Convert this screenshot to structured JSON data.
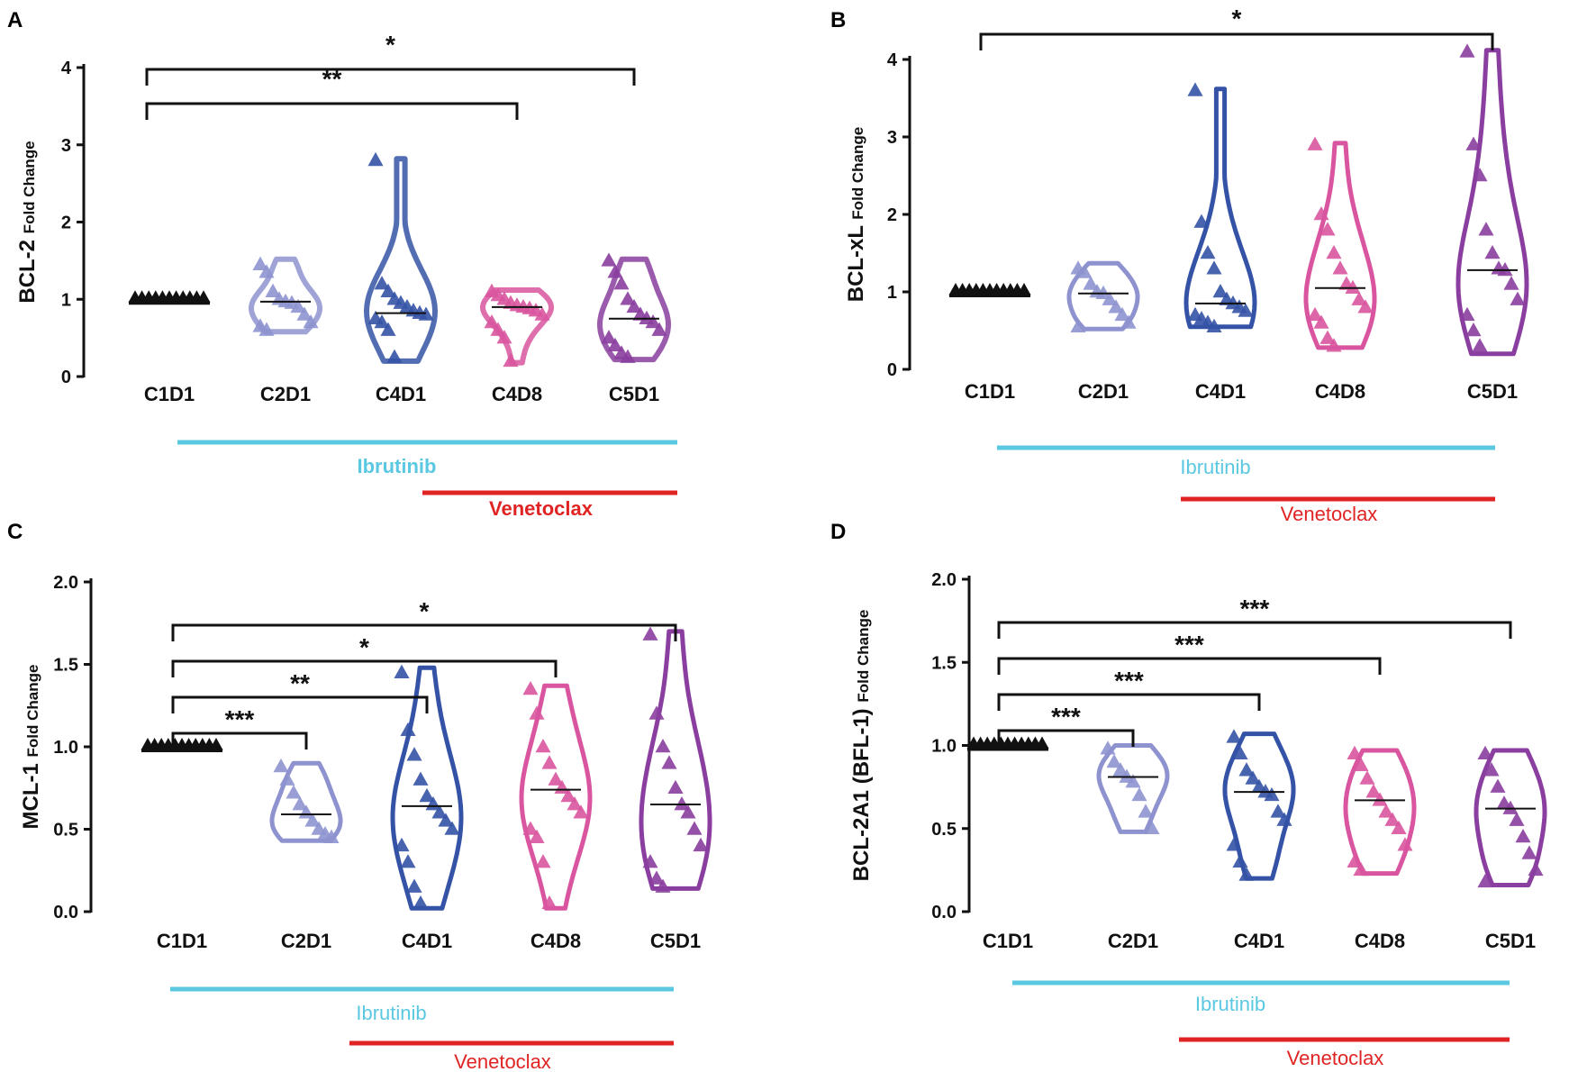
{
  "colors": {
    "C1D1": "#111111",
    "C2D1": "#8e93cf",
    "C4D1": "#3553a6",
    "C4D8": "#d9559f",
    "C5D1": "#8a3e9f",
    "ibrutinib": "#5bc8e2",
    "venetoclax": "#e02424"
  },
  "chart_data": [
    {
      "id": "A",
      "type": "violin",
      "letter": "A",
      "ylabel_main": "BCL-2",
      "ylabel_sub": "Fold Change",
      "ylim": [
        0,
        4
      ],
      "yticks": [
        "0",
        "1",
        "2",
        "3",
        "4"
      ],
      "categories": [
        "C1D1",
        "C2D1",
        "C4D1",
        "C4D8",
        "C5D1"
      ],
      "medians": [
        1.0,
        0.97,
        0.82,
        0.9,
        0.75
      ],
      "series": [
        {
          "name": "C1D1",
          "values": [
            1,
            1,
            1,
            1,
            1,
            1,
            1,
            1,
            1,
            1,
            1,
            1
          ],
          "range": [
            1,
            1
          ]
        },
        {
          "name": "C2D1",
          "values": [
            1.45,
            1.35,
            1.1,
            1.0,
            0.97,
            0.95,
            0.9,
            0.8,
            0.7,
            0.65,
            0.6
          ],
          "range": [
            0.58,
            1.52
          ]
        },
        {
          "name": "C4D1",
          "values": [
            2.8,
            1.2,
            1.1,
            1.0,
            0.95,
            0.9,
            0.85,
            0.82,
            0.8,
            0.75,
            0.7,
            0.6,
            0.25
          ],
          "range": [
            0.2,
            2.82
          ]
        },
        {
          "name": "C4D8",
          "values": [
            1.1,
            1.05,
            1.0,
            0.95,
            0.92,
            0.9,
            0.88,
            0.85,
            0.8,
            0.7,
            0.6,
            0.5,
            0.2
          ],
          "range": [
            0.18,
            1.12
          ]
        },
        {
          "name": "C5D1",
          "values": [
            1.5,
            1.35,
            1.2,
            1.0,
            0.9,
            0.8,
            0.75,
            0.7,
            0.6,
            0.5,
            0.4,
            0.3,
            0.25
          ],
          "range": [
            0.22,
            1.52
          ]
        }
      ],
      "style": "bold",
      "comparisons": [
        {
          "from": "C1D1",
          "to": "C4D8",
          "label": "**"
        },
        {
          "from": "C1D1",
          "to": "C5D1",
          "label": "*"
        }
      ],
      "ibrutinib_label": "Ibrutinib",
      "venetoclax_label": "Venetoclax"
    },
    {
      "id": "B",
      "type": "violin",
      "letter": "B",
      "ylabel_main": "BCL-xL",
      "ylabel_sub": "Fold Change",
      "ylim": [
        0,
        4
      ],
      "yticks": [
        "0",
        "1",
        "2",
        "3",
        "4"
      ],
      "categories": [
        "C1D1",
        "C2D1",
        "C4D1",
        "C4D8",
        "C5D1"
      ],
      "medians": [
        1.0,
        0.98,
        0.85,
        1.05,
        1.28
      ],
      "series": [
        {
          "name": "C1D1",
          "values": [
            1,
            1,
            1,
            1,
            1,
            1,
            1,
            1,
            1,
            1,
            1,
            1
          ],
          "range": [
            1,
            1
          ]
        },
        {
          "name": "C2D1",
          "values": [
            1.3,
            1.25,
            1.1,
            1.0,
            0.98,
            0.9,
            0.8,
            0.7,
            0.6,
            0.55
          ],
          "range": [
            0.52,
            1.37
          ]
        },
        {
          "name": "C4D1",
          "values": [
            3.6,
            1.9,
            1.5,
            1.3,
            1.0,
            0.9,
            0.85,
            0.8,
            0.75,
            0.7,
            0.65,
            0.6,
            0.55
          ],
          "range": [
            0.55,
            3.62
          ]
        },
        {
          "name": "C4D8",
          "values": [
            2.9,
            2.0,
            1.8,
            1.5,
            1.3,
            1.1,
            1.05,
            0.9,
            0.8,
            0.7,
            0.6,
            0.4,
            0.3
          ],
          "range": [
            0.28,
            2.92
          ]
        },
        {
          "name": "C5D1",
          "values": [
            4.1,
            2.9,
            2.5,
            1.8,
            1.5,
            1.3,
            1.28,
            1.1,
            0.9,
            0.7,
            0.5,
            0.3
          ],
          "range": [
            0.2,
            4.12
          ]
        }
      ],
      "style": "light",
      "comparisons": [
        {
          "from": "C1D1",
          "to": "C5D1",
          "label": "*"
        }
      ],
      "ibrutinib_label": "Ibrutinib",
      "venetoclax_label": "Venetoclax"
    },
    {
      "id": "C",
      "type": "violin",
      "letter": "C",
      "ylabel_main": "MCL-1",
      "ylabel_sub": "Fold Change",
      "ylim": [
        0,
        2
      ],
      "yticks": [
        "0.0",
        "0.5",
        "1.0",
        "1.5",
        "2.0"
      ],
      "categories": [
        "C1D1",
        "C2D1",
        "C4D1",
        "C4D8",
        "C5D1"
      ],
      "medians": [
        1.0,
        0.59,
        0.64,
        0.74,
        0.65
      ],
      "series": [
        {
          "name": "C1D1",
          "values": [
            1,
            1,
            1,
            1,
            1,
            1,
            1,
            1,
            1,
            1,
            1,
            1
          ],
          "range": [
            1,
            1
          ]
        },
        {
          "name": "C2D1",
          "values": [
            0.88,
            0.8,
            0.72,
            0.65,
            0.6,
            0.55,
            0.5,
            0.47,
            0.45
          ],
          "range": [
            0.43,
            0.9
          ]
        },
        {
          "name": "C4D1",
          "values": [
            1.45,
            1.1,
            0.95,
            0.8,
            0.7,
            0.65,
            0.6,
            0.55,
            0.5,
            0.4,
            0.3,
            0.15,
            0.05
          ],
          "range": [
            0.02,
            1.48
          ]
        },
        {
          "name": "C4D8",
          "values": [
            1.35,
            1.2,
            1.0,
            0.9,
            0.8,
            0.75,
            0.7,
            0.65,
            0.6,
            0.5,
            0.45,
            0.3,
            0.05
          ],
          "range": [
            0.02,
            1.37
          ]
        },
        {
          "name": "C5D1",
          "values": [
            1.68,
            1.2,
            1.0,
            0.9,
            0.75,
            0.65,
            0.6,
            0.5,
            0.4,
            0.3,
            0.2,
            0.15
          ],
          "range": [
            0.14,
            1.7
          ]
        }
      ],
      "style": "bold",
      "comparisons": [
        {
          "from": "C1D1",
          "to": "C2D1",
          "label": "***"
        },
        {
          "from": "C1D1",
          "to": "C4D1",
          "label": "**"
        },
        {
          "from": "C1D1",
          "to": "C4D8",
          "label": "*"
        },
        {
          "from": "C1D1",
          "to": "C5D1",
          "label": "*"
        }
      ],
      "ibrutinib_label": "Ibrutinib",
      "venetoclax_label": "Venetoclax"
    },
    {
      "id": "D",
      "type": "violin",
      "letter": "D",
      "ylabel_main": "BCL-2A1 (BFL-1)",
      "ylabel_sub": "Fold Change",
      "ylim": [
        0,
        2
      ],
      "yticks": [
        "0.0",
        "0.5",
        "1.0",
        "1.5",
        "2.0"
      ],
      "categories": [
        "C1D1",
        "C2D1",
        "C4D1",
        "C4D8",
        "C5D1"
      ],
      "medians": [
        1.0,
        0.81,
        0.72,
        0.67,
        0.62
      ],
      "series": [
        {
          "name": "C1D1",
          "values": [
            1,
            1,
            1,
            1,
            1,
            1,
            1,
            1,
            1,
            1,
            1,
            1
          ],
          "range": [
            1,
            1
          ]
        },
        {
          "name": "C2D1",
          "values": [
            0.98,
            0.9,
            0.85,
            0.81,
            0.78,
            0.7,
            0.6,
            0.5
          ],
          "range": [
            0.48,
            1.0
          ]
        },
        {
          "name": "C4D1",
          "values": [
            1.05,
            0.95,
            0.85,
            0.8,
            0.75,
            0.72,
            0.7,
            0.6,
            0.55,
            0.4,
            0.3,
            0.22
          ],
          "range": [
            0.2,
            1.07
          ]
        },
        {
          "name": "C4D8",
          "values": [
            0.95,
            0.88,
            0.8,
            0.72,
            0.67,
            0.6,
            0.55,
            0.5,
            0.4,
            0.3,
            0.25
          ],
          "range": [
            0.23,
            0.97
          ]
        },
        {
          "name": "C5D1",
          "values": [
            0.95,
            0.85,
            0.75,
            0.65,
            0.62,
            0.55,
            0.45,
            0.35,
            0.25,
            0.18
          ],
          "range": [
            0.16,
            0.97
          ]
        }
      ],
      "style": "light",
      "comparisons": [
        {
          "from": "C1D1",
          "to": "C2D1",
          "label": "***"
        },
        {
          "from": "C1D1",
          "to": "C4D1",
          "label": "***"
        },
        {
          "from": "C1D1",
          "to": "C4D8",
          "label": "***"
        },
        {
          "from": "C1D1",
          "to": "C5D1",
          "label": "***"
        }
      ],
      "ibrutinib_label": "Ibrutinib",
      "venetoclax_label": "Venetoclax"
    }
  ]
}
